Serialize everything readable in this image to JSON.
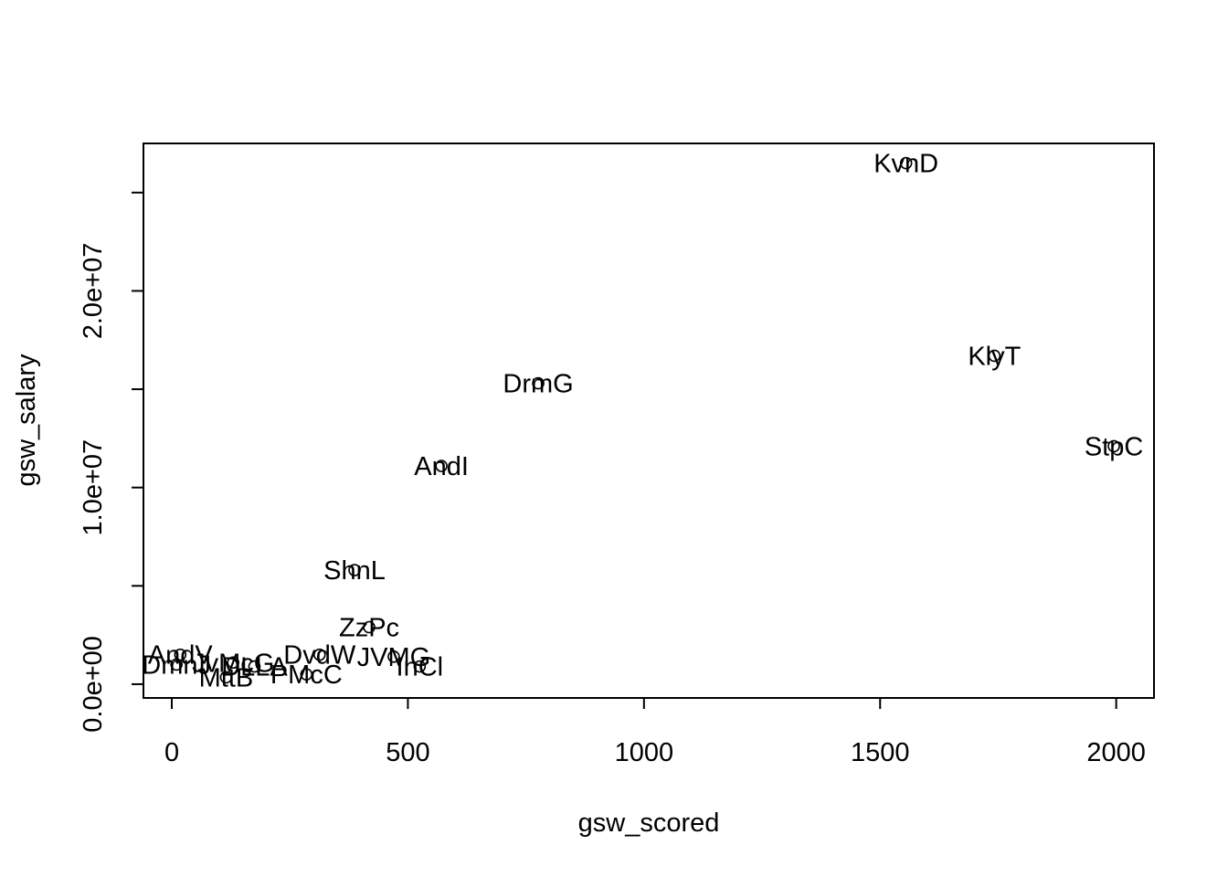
{
  "chart_data": {
    "type": "scatter",
    "xlabel": "gsw_scored",
    "ylabel": "gsw_salary",
    "xlim": [
      -60,
      2080
    ],
    "ylim": [
      -700000,
      27500000
    ],
    "x_ticks": [
      0,
      500,
      1000,
      1500,
      2000
    ],
    "x_tick_labels": [
      "0",
      "500",
      "1000",
      "1500",
      "2000"
    ],
    "y_ticks": [
      0,
      5000000,
      10000000,
      15000000,
      20000000,
      25000000
    ],
    "y_tick_labels": [
      "0.0e+00",
      "",
      "1.0e+07",
      "",
      "2.0e+07",
      ""
    ],
    "point_marker": "open-circle",
    "points": [
      {
        "label": "KvnD",
        "x": 1555,
        "y": 26500000
      },
      {
        "label": "KlyT",
        "x": 1742,
        "y": 16700000
      },
      {
        "label": "DrmG",
        "x": 776,
        "y": 15300000
      },
      {
        "label": "StpC",
        "x": 1995,
        "y": 12100000
      },
      {
        "label": "AndI",
        "x": 571,
        "y": 11100000
      },
      {
        "label": "ShnL",
        "x": 387,
        "y": 5800000
      },
      {
        "label": "ZzPc",
        "x": 418,
        "y": 2900000
      },
      {
        "label": "DvdW",
        "x": 313,
        "y": 1500000
      },
      {
        "label": "JVMG",
        "x": 470,
        "y": 1400000
      },
      {
        "label": "InCl",
        "x": 525,
        "y": 900000
      },
      {
        "label": "AndV",
        "x": 18,
        "y": 1500000
      },
      {
        "label": "DmnJ",
        "x": 10,
        "y": 1000000
      },
      {
        "label": "JvMcG",
        "x": 130,
        "y": 1100000
      },
      {
        "label": "DLLA",
        "x": 175,
        "y": 900000
      },
      {
        "label": "MttB",
        "x": 115,
        "y": 350000
      },
      {
        "label": "PMcC",
        "x": 285,
        "y": 500000
      }
    ]
  }
}
